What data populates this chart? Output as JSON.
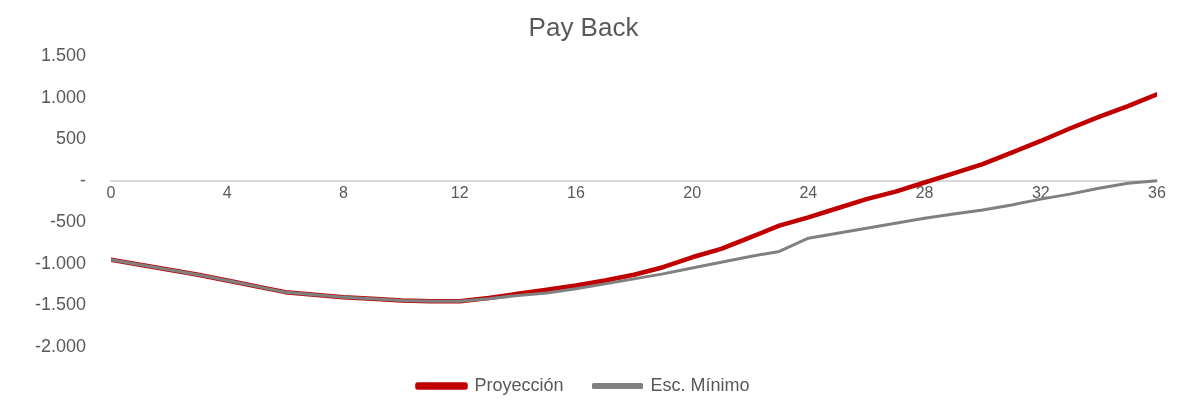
{
  "chart_data": {
    "type": "line",
    "title": "Pay Back",
    "x": [
      0,
      1,
      2,
      3,
      4,
      5,
      6,
      7,
      8,
      9,
      10,
      11,
      12,
      13,
      14,
      15,
      16,
      17,
      18,
      19,
      20,
      21,
      22,
      23,
      24,
      25,
      26,
      27,
      28,
      29,
      30,
      31,
      32,
      33,
      34,
      35,
      36
    ],
    "xlim": [
      0,
      36
    ],
    "xticks": [
      0,
      4,
      8,
      12,
      16,
      20,
      24,
      28,
      32,
      36
    ],
    "ylim": [
      -2000,
      1500
    ],
    "yticks": [
      {
        "value": 1500,
        "label": "1.500"
      },
      {
        "value": 1000,
        "label": "1.000"
      },
      500,
      {
        "value": 0,
        "label": "-"
      },
      -500,
      {
        "value": -1000,
        "label": "-1.000"
      },
      {
        "value": -1500,
        "label": "-1.500"
      },
      {
        "value": -2000,
        "label": "-2.000"
      }
    ],
    "grid": false,
    "legend": "bottom",
    "marker": "none",
    "line_style": "solid",
    "series": [
      {
        "name": "Proyección",
        "color": "#c00000",
        "values": [
          -950,
          -1010,
          -1070,
          -1130,
          -1200,
          -1270,
          -1340,
          -1370,
          -1400,
          -1420,
          -1440,
          -1450,
          -1450,
          -1410,
          -1360,
          -1310,
          -1260,
          -1200,
          -1130,
          -1040,
          -920,
          -820,
          -680,
          -540,
          -440,
          -330,
          -220,
          -130,
          -20,
          90,
          200,
          340,
          480,
          630,
          770,
          900,
          1040
        ]
      },
      {
        "name": "Esc. Mínimo",
        "color": "#808080",
        "values": [
          -950,
          -1010,
          -1070,
          -1130,
          -1200,
          -1270,
          -1340,
          -1370,
          -1400,
          -1420,
          -1440,
          -1450,
          -1450,
          -1420,
          -1380,
          -1350,
          -1300,
          -1240,
          -1180,
          -1120,
          -1050,
          -980,
          -910,
          -850,
          -690,
          -630,
          -570,
          -510,
          -450,
          -400,
          -350,
          -290,
          -220,
          -160,
          -90,
          -30,
          0
        ]
      }
    ]
  }
}
